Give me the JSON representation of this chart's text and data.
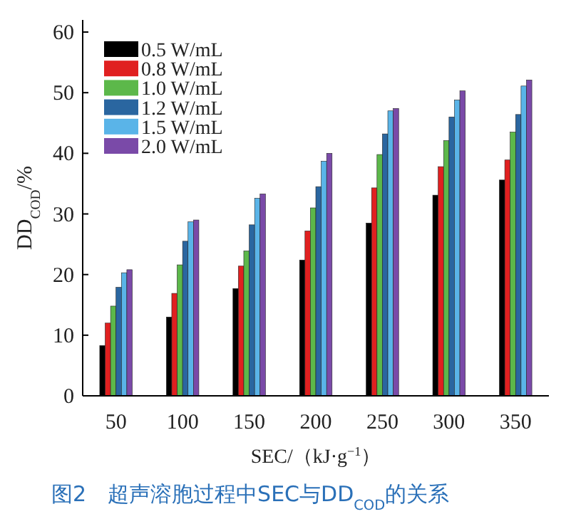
{
  "chart_data": {
    "type": "bar",
    "title": "图2　超声溶胞过程中SEC与DD$_{COD}$的关系",
    "xlabel": "SEC/（kJ·g$^{−1}$）",
    "ylabel": "DD$_{COD}$/%",
    "categories": [
      "50",
      "100",
      "150",
      "200",
      "250",
      "300",
      "350"
    ],
    "series": [
      {
        "name": "0.5 W/mL",
        "color": "#000000",
        "values": [
          8.3,
          13.0,
          17.7,
          22.4,
          28.5,
          33.1,
          35.6
        ]
      },
      {
        "name": "0.8 W/mL",
        "color": "#e02020",
        "values": [
          12.0,
          16.9,
          21.4,
          27.2,
          34.3,
          37.8,
          38.9
        ]
      },
      {
        "name": "1.0 W/mL",
        "color": "#5cb84a",
        "values": [
          14.8,
          21.6,
          23.9,
          31.0,
          39.8,
          42.1,
          43.5
        ]
      },
      {
        "name": "1.2 W/mL",
        "color": "#2a66a0",
        "values": [
          17.9,
          25.5,
          28.2,
          34.5,
          43.2,
          46.0,
          46.4
        ]
      },
      {
        "name": "1.5 W/mL",
        "color": "#5ab4e8",
        "values": [
          20.3,
          28.7,
          32.6,
          38.7,
          47.0,
          48.8,
          51.1
        ]
      },
      {
        "name": "2.0 W/mL",
        "color": "#7a4aa8",
        "values": [
          20.8,
          29.0,
          33.3,
          40.0,
          47.4,
          50.3,
          52.1
        ]
      }
    ],
    "ylim": [
      0,
      62
    ],
    "yticks": [
      0,
      10,
      20,
      30,
      40,
      50,
      60
    ],
    "legend": "top left"
  }
}
